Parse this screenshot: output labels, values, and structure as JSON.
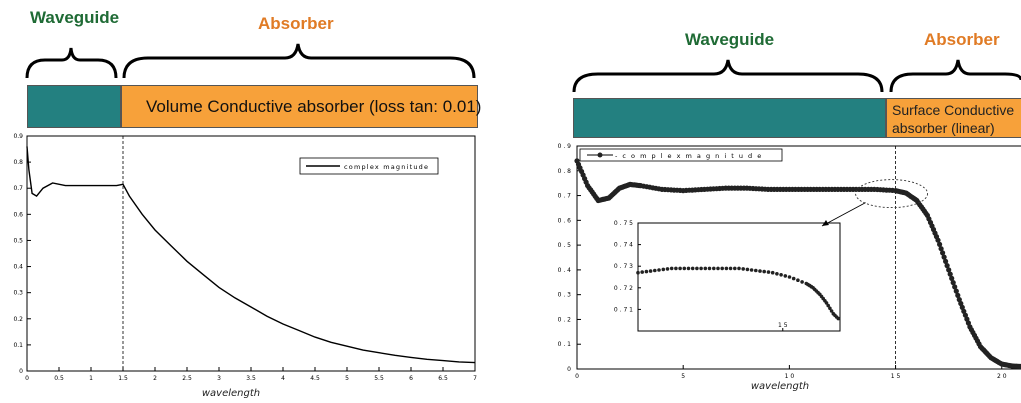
{
  "left_panel": {
    "waveguide_label": "Waveguide",
    "absorber_label": "Absorber",
    "absorber_bar_label": "Volume Conductive absorber  (loss tan: 0.01)",
    "colors": {
      "waveguide": "#238080",
      "absorber": "#f7a13a",
      "title_green": "#1f6b35",
      "title_orange": "#e07b25"
    }
  },
  "right_panel": {
    "waveguide_label": "Waveguide",
    "absorber_label": "Absorber",
    "absorber_bar_label_line1": "Surface Conductive",
    "absorber_bar_label_line2": "absorber  (linear)"
  },
  "chart_data": [
    {
      "type": "line",
      "xlabel": "wavelength",
      "ylabel": "",
      "xlim": [
        0,
        7
      ],
      "ylim": [
        0,
        0.9
      ],
      "xticks": [
        "0",
        "0.5",
        "1",
        "1.5",
        "2",
        "2.5",
        "3",
        "3.5",
        "4",
        "4.5",
        "5",
        "5.5",
        "6",
        "6.5",
        "7"
      ],
      "yticks": [
        "0",
        "0.1",
        "0.2",
        "0.3",
        "0.4",
        "0.5",
        "0.6",
        "0.7",
        "0.8",
        "0.9"
      ],
      "legend": "top-right",
      "series": [
        {
          "name": "complex magnitude",
          "x": [
            0,
            0.03,
            0.08,
            0.15,
            0.25,
            0.4,
            0.6,
            0.8,
            1.0,
            1.2,
            1.4,
            1.5,
            1.6,
            1.8,
            2.0,
            2.25,
            2.5,
            2.75,
            3.0,
            3.25,
            3.5,
            3.75,
            4.0,
            4.25,
            4.5,
            4.75,
            5.0,
            5.25,
            5.5,
            5.75,
            6.0,
            6.25,
            6.5,
            6.75,
            7.0
          ],
          "y": [
            0.86,
            0.77,
            0.68,
            0.67,
            0.7,
            0.72,
            0.71,
            0.71,
            0.71,
            0.71,
            0.71,
            0.715,
            0.67,
            0.6,
            0.54,
            0.48,
            0.42,
            0.37,
            0.32,
            0.28,
            0.245,
            0.21,
            0.18,
            0.155,
            0.13,
            0.11,
            0.095,
            0.08,
            0.07,
            0.06,
            0.052,
            0.045,
            0.04,
            0.035,
            0.032
          ]
        }
      ],
      "annotations": [
        {
          "type": "vline",
          "x": 1.5
        }
      ]
    },
    {
      "type": "scatter",
      "xlabel": "wavelength",
      "ylabel": "",
      "xlim": [
        0,
        2.1
      ],
      "ylim": [
        0,
        0.9
      ],
      "xticks": [
        "0",
        "5",
        "1 0",
        "1 5",
        "2 0"
      ],
      "yticks": [
        "0",
        "0 . 1",
        "0 . 2",
        "0 . 3",
        "0 . 4",
        "0 . 5",
        "0 . 6",
        "0 . 7",
        "0 . 8",
        "0 . 9"
      ],
      "legend": "top-left",
      "series": [
        {
          "name": "- c o m p l e x  m a g n i t u d e",
          "x": [
            0,
            0.05,
            0.1,
            0.15,
            0.2,
            0.25,
            0.3,
            0.4,
            0.5,
            0.6,
            0.7,
            0.8,
            0.9,
            1.0,
            1.1,
            1.2,
            1.3,
            1.4,
            1.5,
            1.55,
            1.6,
            1.65,
            1.7,
            1.75,
            1.8,
            1.85,
            1.9,
            1.95,
            2.0,
            2.05,
            2.1
          ],
          "y": [
            0.84,
            0.74,
            0.68,
            0.69,
            0.73,
            0.745,
            0.74,
            0.725,
            0.72,
            0.725,
            0.73,
            0.73,
            0.725,
            0.725,
            0.725,
            0.725,
            0.725,
            0.725,
            0.72,
            0.71,
            0.68,
            0.62,
            0.52,
            0.4,
            0.28,
            0.17,
            0.09,
            0.045,
            0.02,
            0.012,
            0.01
          ]
        }
      ],
      "inset": {
        "yticks": [
          "0 . 7 5",
          "0 . 7 4",
          "0 . 7 3",
          "0 . 7 2",
          "0 . 7 1"
        ],
        "xtick": "1 5",
        "ylim": [
          0.7,
          0.75
        ],
        "xlim": [
          1.0,
          1.6
        ],
        "x": [
          1.0,
          1.05,
          1.1,
          1.15,
          1.2,
          1.25,
          1.3,
          1.35,
          1.4,
          1.45,
          1.5,
          1.52,
          1.54,
          1.56,
          1.58,
          1.6
        ],
        "y": [
          0.727,
          0.728,
          0.729,
          0.729,
          0.729,
          0.729,
          0.729,
          0.728,
          0.727,
          0.725,
          0.722,
          0.72,
          0.717,
          0.713,
          0.708,
          0.705
        ]
      },
      "annotations": [
        {
          "type": "vline",
          "x": 1.5
        },
        {
          "type": "ellipse",
          "x": 1.5,
          "y": 0.72
        }
      ]
    }
  ]
}
